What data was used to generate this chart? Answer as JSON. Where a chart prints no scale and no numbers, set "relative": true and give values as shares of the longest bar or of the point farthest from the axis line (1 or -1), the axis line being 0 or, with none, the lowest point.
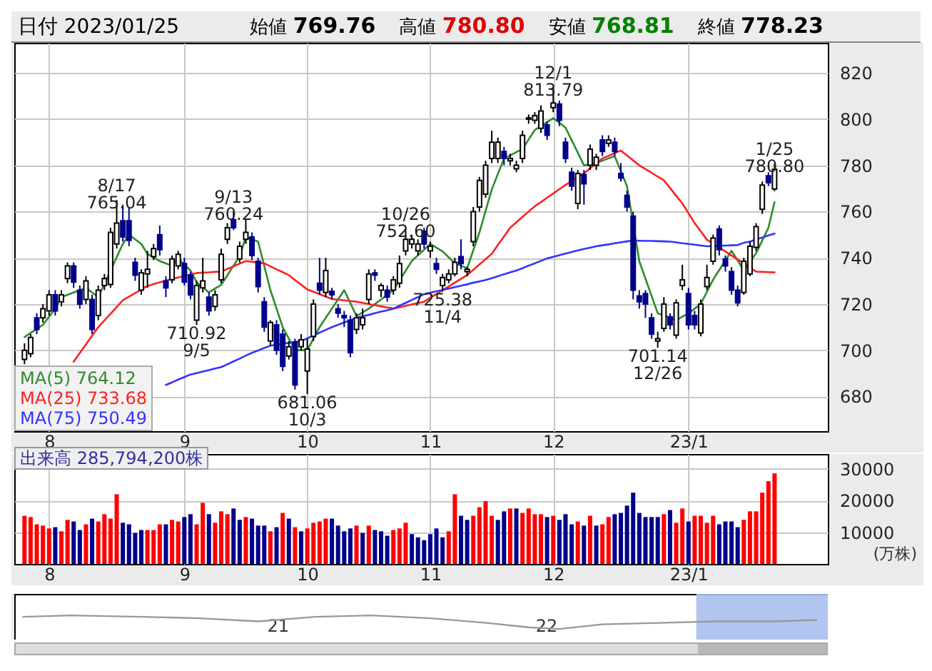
{
  "chart_data": [
    {
      "type": "candlestick",
      "title": "日付 2023/01/25",
      "annotations": [
        "始値 769.76",
        "高値 780.80",
        "安値 768.81",
        "終値 778.23",
        {
          "text": "8/17 765.04",
          "y": 765.04
        },
        {
          "text": "710.92 9/5",
          "y": 710.92
        },
        {
          "text": "9/13 760.24",
          "y": 760.24
        },
        {
          "text": "681.06 10/3",
          "y": 681.06
        },
        {
          "text": "10/26 752.60",
          "y": 752.6
        },
        {
          "text": "725.38 11/4",
          "y": 725.38
        },
        {
          "text": "12/1 813.79",
          "y": 813.79
        },
        {
          "text": "701.14 12/26",
          "y": 701.14
        },
        {
          "text": "1/25 780.80",
          "y": 780.8
        }
      ],
      "categories": [
        null,
        null,
        null,
        null,
        "8",
        null,
        null,
        null,
        null,
        null,
        null,
        null,
        null,
        null,
        null,
        null,
        null,
        null,
        null,
        null,
        null,
        null,
        null,
        null,
        null,
        null,
        "9",
        null,
        null,
        null,
        null,
        null,
        null,
        null,
        null,
        null,
        null,
        null,
        null,
        null,
        null,
        null,
        null,
        null,
        null,
        null,
        "10",
        null,
        null,
        null,
        null,
        null,
        null,
        null,
        null,
        null,
        null,
        null,
        null,
        null,
        null,
        null,
        null,
        null,
        null,
        null,
        "11",
        null,
        null,
        null,
        null,
        null,
        null,
        null,
        null,
        null,
        null,
        null,
        null,
        null,
        null,
        null,
        null,
        null,
        null,
        null,
        "12",
        null,
        null,
        null,
        null,
        null,
        null,
        null,
        null,
        null,
        null,
        null,
        null,
        null,
        null,
        null,
        null,
        null,
        null,
        null,
        null,
        null,
        "23/1",
        null,
        null,
        null,
        null,
        null,
        null,
        null,
        null,
        null,
        null,
        null,
        null,
        null,
        null,
        null,
        null,
        null,
        null,
        null,
        null,
        null
      ],
      "ylim": [
        665,
        833
      ],
      "yticks": [
        680,
        700,
        720,
        740,
        760,
        780,
        800,
        820
      ],
      "grid": true,
      "legend": "bottom left",
      "ohlc": [
        [
          696,
          703,
          694,
          700
        ],
        [
          698.5,
          707,
          697,
          705.5
        ],
        [
          714,
          716,
          707,
          709
        ],
        [
          714,
          720,
          712,
          718
        ],
        [
          717,
          726,
          715,
          724
        ],
        [
          724,
          726,
          715,
          717
        ],
        [
          721,
          726,
          719,
          724
        ],
        [
          731,
          738,
          729,
          736.5
        ],
        [
          736.5,
          738,
          727,
          729.5
        ],
        [
          726,
          728,
          718,
          720
        ],
        [
          722,
          732,
          720,
          730
        ],
        [
          722,
          724,
          707,
          709
        ],
        [
          715,
          728,
          713,
          726
        ],
        [
          728,
          733,
          726,
          731
        ],
        [
          728.5,
          753,
          727,
          751
        ],
        [
          746,
          765.04,
          744,
          755
        ],
        [
          756,
          763,
          747,
          749
        ],
        [
          756,
          762,
          745,
          747.5
        ],
        [
          738,
          740,
          730,
          732.5
        ],
        [
          726,
          735,
          724,
          733.5
        ],
        [
          733,
          743,
          727,
          735
        ],
        [
          740.5,
          746,
          739,
          744
        ],
        [
          750,
          754,
          741,
          743.5
        ],
        [
          730,
          732,
          723,
          727
        ],
        [
          730.5,
          741,
          729,
          739.5
        ],
        [
          736.5,
          743,
          735,
          741.5
        ],
        [
          737.5,
          740,
          728,
          729.5
        ],
        [
          732.5,
          734,
          722,
          724
        ],
        [
          713,
          730,
          710.92,
          728
        ],
        [
          727,
          740,
          725,
          730
        ],
        [
          723,
          725,
          715,
          717
        ],
        [
          719,
          726,
          717,
          724
        ],
        [
          730.5,
          744,
          729,
          741.5
        ],
        [
          748,
          755,
          746,
          753
        ],
        [
          756.5,
          760.24,
          752,
          753
        ],
        [
          739.5,
          747,
          738,
          745
        ],
        [
          748,
          757,
          746,
          751
        ],
        [
          749,
          751,
          739,
          741
        ],
        [
          738.5,
          740,
          725,
          727.5
        ],
        [
          721,
          723,
          708,
          710
        ],
        [
          704,
          713,
          702,
          712
        ],
        [
          711,
          713,
          698,
          700
        ],
        [
          707,
          709,
          691,
          693
        ],
        [
          697.5,
          704,
          696,
          701.5
        ],
        [
          703.5,
          705,
          683,
          685
        ],
        [
          701.5,
          707,
          700,
          704.5
        ],
        [
          691,
          705,
          681.06,
          700.5
        ],
        [
          706,
          722,
          704,
          720
        ],
        [
          729,
          740,
          724,
          726
        ],
        [
          725,
          740,
          723,
          734.5
        ],
        [
          725.5,
          727,
          722,
          724
        ],
        [
          718,
          720,
          714,
          716
        ],
        [
          715,
          717,
          710,
          714
        ],
        [
          713,
          715,
          697,
          699
        ],
        [
          709,
          716,
          707,
          714
        ],
        [
          711,
          718,
          709,
          714
        ],
        [
          722,
          735,
          720,
          733
        ],
        [
          733.5,
          735,
          730,
          732.5
        ],
        [
          726,
          729,
          723,
          728
        ],
        [
          726,
          728,
          721,
          723
        ],
        [
          726,
          732,
          724,
          730.5
        ],
        [
          729,
          741,
          727,
          737.5
        ],
        [
          743,
          752.6,
          741,
          748
        ],
        [
          746,
          750,
          744,
          748
        ],
        [
          743,
          748,
          741,
          746
        ],
        [
          751.5,
          753,
          744,
          746
        ],
        [
          743,
          747,
          740,
          745
        ],
        [
          737.5,
          740,
          733,
          735
        ],
        [
          728,
          733,
          725.38,
          731.5
        ],
        [
          730.5,
          735,
          729,
          733
        ],
        [
          733,
          740,
          732,
          738
        ],
        [
          740.5,
          748,
          735,
          737.5
        ],
        [
          734,
          736,
          732,
          735
        ],
        [
          747,
          762,
          745,
          760
        ],
        [
          762,
          775,
          760,
          773.5
        ],
        [
          767.5,
          782,
          766,
          780
        ],
        [
          783,
          795,
          781,
          790
        ],
        [
          783,
          792,
          781,
          790
        ],
        [
          786,
          788,
          780,
          783
        ],
        [
          782,
          785,
          780,
          783
        ],
        [
          778.5,
          782,
          777,
          780
        ],
        [
          783,
          795,
          781,
          793
        ],
        [
          800,
          802,
          798,
          800.5
        ],
        [
          799.5,
          803,
          798,
          801.5
        ],
        [
          796,
          806,
          794,
          803.5
        ],
        [
          797.5,
          799,
          791,
          793
        ],
        [
          805,
          813.79,
          803,
          807
        ],
        [
          806.5,
          808,
          797,
          799.5
        ],
        [
          790,
          792,
          781,
          783
        ],
        [
          777,
          779,
          769,
          771
        ],
        [
          763.5,
          778,
          761,
          776.5
        ],
        [
          776,
          778,
          763,
          772
        ],
        [
          780,
          789,
          778,
          787
        ],
        [
          780,
          785,
          778,
          783.5
        ],
        [
          791,
          793,
          784,
          786
        ],
        [
          789.5,
          793,
          788,
          791
        ],
        [
          790,
          792,
          784,
          786
        ],
        [
          776.5,
          781,
          773,
          774.5
        ],
        [
          767,
          769,
          760,
          762
        ],
        [
          758,
          760,
          722,
          726
        ],
        [
          723.5,
          726,
          718,
          721
        ],
        [
          724.5,
          726,
          714,
          720
        ],
        [
          714,
          716,
          705,
          707
        ],
        [
          704,
          708,
          701.14,
          705
        ],
        [
          709.5,
          723,
          708,
          720
        ],
        [
          714.5,
          716,
          709,
          711
        ],
        [
          706.5,
          722,
          705,
          720.5
        ],
        [
          728,
          737,
          726,
          730.5
        ],
        [
          724.5,
          727,
          709,
          711
        ],
        [
          715,
          717,
          709,
          711
        ],
        [
          707.5,
          722,
          706,
          720
        ],
        [
          727.5,
          737,
          726,
          731.5
        ],
        [
          738.5,
          750,
          737,
          748.5
        ],
        [
          752.5,
          754,
          741,
          743.5
        ],
        [
          739.5,
          741,
          734,
          736.5
        ],
        [
          734,
          736,
          724,
          726
        ],
        [
          726,
          728,
          719,
          720.5
        ],
        [
          725,
          740,
          724,
          738.5
        ],
        [
          733,
          747,
          732,
          745
        ],
        [
          744.5,
          755,
          743,
          753.5
        ],
        [
          761,
          773,
          759,
          771.5
        ],
        [
          775.5,
          777,
          771,
          772.5
        ],
        [
          769.76,
          780.8,
          768.81,
          778.23
        ],
        null,
        null,
        null,
        null,
        null,
        null,
        null
      ],
      "series": [
        {
          "type": "line",
          "name": "MA(5) 764.12",
          "color": "#2e8b2e",
          "values": [
            705.7,
            707.5,
            709.2,
            711,
            714.5,
            718,
            723,
            724,
            725,
            726,
            727,
            725,
            723,
            728.8,
            734.5,
            740.3,
            746,
            750,
            748,
            746,
            741.7,
            740.2,
            738.6,
            737.6,
            736.6,
            739.7,
            737.1,
            734.5,
            729.4,
            727.2,
            725,
            726.7,
            728.3,
            732.4,
            736.6,
            740.7,
            749,
            748,
            747,
            736.5,
            726,
            718,
            710,
            705,
            700,
            700,
            700,
            705,
            710,
            714,
            718,
            722,
            726,
            720.4,
            714.8,
            716.4,
            718,
            720,
            722,
            724,
            726,
            730.2,
            734.4,
            738.6,
            741.1,
            743.5,
            746,
            744.4,
            742.8,
            740.2,
            737.6,
            736.6,
            735.5,
            743.3,
            751,
            760.3,
            769.5,
            776.3,
            783,
            784.3,
            785.7,
            787,
            791.2,
            795.3,
            797,
            798.7,
            800.4,
            798.4,
            796.3,
            790.9,
            785.5,
            780,
            780.5,
            781,
            782,
            783,
            784,
            777.5,
            771,
            null,
            738.5,
            731,
            723.5,
            716,
            715,
            714,
            713,
            714.5,
            716,
            718,
            720,
            725.3,
            730.5,
            734.7,
            738.8,
            743,
            738.8,
            734.5,
            738.3,
            742,
            747.5,
            753,
            764.12,
            null,
            null,
            null,
            null,
            null,
            null,
            null
          ]
        },
        {
          "type": "line",
          "name": "MA(25) 733.68",
          "color": "#ff2020",
          "values": [
            null,
            null,
            null,
            null,
            null,
            null,
            null,
            null,
            695,
            698.8,
            702.5,
            706.3,
            710,
            712.9,
            715.8,
            718.7,
            721.6,
            723.2,
            724.7,
            726.3,
            727.8,
            728.6,
            729.4,
            730.1,
            730.9,
            731.5,
            732.2,
            732.8,
            733.4,
            733.6,
            733.7,
            733.9,
            734,
            735.2,
            736.3,
            737.5,
            738.6,
            738.3,
            737.9,
            737.6,
            736.3,
            735,
            733.8,
            732.5,
            730.4,
            728.4,
            726.3,
            725.3,
            724.3,
            723.2,
            722.2,
            721.9,
            721.6,
            721.3,
            721,
            720.5,
            720,
            719.5,
            719,
            718.5,
            718,
            718.6,
            719.2,
            719.8,
            720.4,
            721,
            722.7,
            724.3,
            726,
            727.6,
            729.3,
            730.9,
            732.5,
            734.8,
            737.1,
            739.4,
            741.7,
            745.5,
            749.2,
            753,
            755.3,
            757.7,
            760,
            762.3,
            764.1,
            766,
            767.8,
            769.7,
            771.5,
            773.2,
            774.8,
            776.5,
            778.7,
            780.8,
            783,
            784.1,
            785.3,
            786.4,
            784.3,
            782.1,
            780,
            778.4,
            776.8,
            775.1,
            773.5,
            770.2,
            766.8,
            763.5,
            759.3,
            755,
            751.4,
            747.8,
            746.1,
            744.4,
            742.7,
            741,
            739.3,
            737.6,
            735.8,
            734,
            733.9,
            733.8,
            733.68,
            null,
            null,
            null,
            null,
            null,
            null,
            null
          ]
        },
        {
          "type": "line",
          "name": "MA(75) 750.49",
          "color": "#3333ff",
          "values": [
            null,
            null,
            null,
            null,
            null,
            null,
            null,
            null,
            null,
            null,
            null,
            null,
            null,
            null,
            null,
            null,
            null,
            null,
            null,
            null,
            null,
            null,
            null,
            685,
            686.1,
            687.3,
            688.4,
            689.5,
            690.1,
            690.8,
            691.4,
            692.1,
            692.7,
            693.9,
            695.2,
            696.4,
            697.7,
            698.9,
            699.9,
            701,
            702,
            702.4,
            702.8,
            703.2,
            703.6,
            704,
            705.2,
            706.4,
            707.6,
            708.8,
            710,
            711,
            712,
            713,
            714,
            714.7,
            715.3,
            716,
            716.7,
            717.3,
            718,
            719.3,
            720.5,
            721.8,
            723,
            724.3,
            724.9,
            725.5,
            726.1,
            726.7,
            727.3,
            727.9,
            728.5,
            729.2,
            729.8,
            730.4,
            731.2,
            732,
            732.9,
            733.7,
            734.5,
            735.5,
            736.6,
            737.6,
            738.7,
            739.7,
            740.4,
            741.1,
            741.8,
            742.5,
            743.2,
            743.8,
            744.4,
            745,
            745.4,
            745.8,
            746.3,
            746.7,
            747.1,
            747.5,
            747.4,
            747.3,
            747.3,
            747.2,
            747.1,
            747,
            746.7,
            746.3,
            746,
            745.7,
            745.3,
            745,
            745.1,
            745.2,
            745.3,
            745.4,
            745.5,
            746.5,
            747,
            748,
            748.8,
            749.7,
            750.49,
            null,
            null,
            null,
            null,
            null,
            null,
            null
          ]
        }
      ]
    },
    {
      "type": "bar",
      "title": "出来高 285,794,200株",
      "ylabel": "(万株)",
      "categories": [
        null,
        null,
        null,
        null,
        "8",
        null,
        null,
        null,
        null,
        null,
        null,
        null,
        null,
        null,
        null,
        null,
        null,
        null,
        null,
        null,
        null,
        null,
        null,
        null,
        null,
        null,
        "9",
        null,
        null,
        null,
        null,
        null,
        null,
        null,
        null,
        null,
        null,
        null,
        null,
        null,
        null,
        null,
        null,
        null,
        null,
        null,
        "10",
        null,
        null,
        null,
        null,
        null,
        null,
        null,
        null,
        null,
        null,
        null,
        null,
        null,
        null,
        null,
        null,
        null,
        null,
        null,
        "11",
        null,
        null,
        null,
        null,
        null,
        null,
        null,
        null,
        null,
        null,
        null,
        null,
        null,
        null,
        null,
        null,
        null,
        null,
        null,
        "12",
        null,
        null,
        null,
        null,
        null,
        null,
        null,
        null,
        null,
        null,
        null,
        null,
        null,
        null,
        null,
        null,
        null,
        null,
        null,
        null,
        null,
        "23/1",
        null,
        null,
        null,
        null,
        null,
        null,
        null,
        null,
        null,
        null,
        null,
        null,
        null,
        null,
        null,
        null,
        null,
        null,
        null,
        null,
        null
      ],
      "values": [
        15200,
        14800,
        12500,
        12100,
        11200,
        11600,
        10300,
        13900,
        13400,
        10700,
        12500,
        14300,
        13400,
        15700,
        14300,
        22000,
        13000,
        12500,
        9800,
        10700,
        10700,
        10700,
        12500,
        12500,
        13900,
        13400,
        14800,
        15700,
        12500,
        19300,
        15700,
        13000,
        16600,
        15700,
        17500,
        13900,
        14800,
        14300,
        12100,
        12100,
        10300,
        11600,
        16100,
        14300,
        11600,
        10300,
        11200,
        13000,
        13400,
        14300,
        14300,
        12100,
        10300,
        11200,
        12100,
        9800,
        12100,
        10700,
        10300,
        8900,
        10700,
        11200,
        13000,
        9400,
        8400,
        7500,
        9400,
        11200,
        8400,
        10300,
        22000,
        15200,
        13900,
        15200,
        17900,
        19800,
        15200,
        13900,
        16600,
        17500,
        17500,
        16100,
        17500,
        15700,
        15700,
        14800,
        15200,
        13900,
        15700,
        12500,
        13400,
        12100,
        15200,
        12100,
        12500,
        14800,
        15700,
        16100,
        18400,
        22500,
        16100,
        14800,
        14800,
        14800,
        15700,
        17000,
        13000,
        17500,
        13400,
        15200,
        15200,
        13000,
        15200,
        12500,
        13400,
        13400,
        11600,
        13900,
        16600,
        16600,
        22500,
        26100,
        28579.42,
        null,
        null,
        null,
        null,
        null,
        null,
        null
      ],
      "colors": [
        "#ff0000",
        "#ff0000",
        "#ff0000",
        "#ff0000",
        "#ff0000",
        "#00008b",
        "#ff0000",
        "#ff0000",
        "#00008b",
        "#00008b",
        "#ff0000",
        "#00008b",
        "#ff0000",
        "#ff0000",
        "#ff0000",
        "#ff0000",
        "#00008b",
        "#00008b",
        "#00008b",
        "#00008b",
        "#ff0000",
        "#ff0000",
        "#ff0000",
        "#00008b",
        "#ff0000",
        "#ff0000",
        "#00008b",
        "#00008b",
        "#ff0000",
        "#ff0000",
        "#00008b",
        "#ff0000",
        "#ff0000",
        "#ff0000",
        "#00008b",
        "#00008b",
        "#ff0000",
        "#00008b",
        "#00008b",
        "#00008b",
        "#ff0000",
        "#00008b",
        "#ff0000",
        "#00008b",
        "#ff0000",
        "#00008b",
        "#ff0000",
        "#ff0000",
        "#ff0000",
        "#ff0000",
        "#00008b",
        "#00008b",
        "#00008b",
        "#00008b",
        "#ff0000",
        "#00008b",
        "#ff0000",
        "#00008b",
        "#00008b",
        "#00008b",
        "#ff0000",
        "#ff0000",
        "#ff0000",
        "#00008b",
        "#00008b",
        "#00008b",
        "#00008b",
        "#00008b",
        "#00008b",
        "#ff0000",
        "#ff0000",
        "#00008b",
        "#00008b",
        "#ff0000",
        "#ff0000",
        "#ff0000",
        "#ff0000",
        "#00008b",
        "#00008b",
        "#ff0000",
        "#00008b",
        "#ff0000",
        "#ff0000",
        "#ff0000",
        "#ff0000",
        "#00008b",
        "#ff0000",
        "#00008b",
        "#00008b",
        "#00008b",
        "#ff0000",
        "#00008b",
        "#ff0000",
        "#00008b",
        "#ff0000",
        "#ff0000",
        "#00008b",
        "#00008b",
        "#00008b",
        "#00008b",
        "#00008b",
        "#00008b",
        "#00008b",
        "#00008b",
        "#ff0000",
        "#00008b",
        "#ff0000",
        "#ff0000",
        "#00008b",
        "#ff0000",
        "#ff0000",
        "#ff0000",
        "#ff0000",
        "#00008b",
        "#00008b",
        "#00008b",
        "#00008b",
        "#ff0000",
        "#ff0000",
        "#ff0000",
        "#ff0000",
        "#ff0000",
        "#ff0000",
        null,
        null,
        null,
        null,
        null,
        null,
        null
      ],
      "ylim": [
        0,
        34700
      ],
      "yticks": [
        10000,
        20000,
        30000
      ],
      "grid": true
    },
    {
      "type": "line",
      "relative": true,
      "x": [
        2020.05,
        2020.23,
        2020.5,
        2020.71,
        2020.93,
        2021.14,
        2021.35,
        2021.57,
        2021.78,
        2021.94,
        2022.05,
        2022.21,
        2022.42,
        2022.63,
        2022.85,
        2023.01
      ],
      "series": [
        {
          "color": "#999999",
          "values": [
            0.94,
            1,
            0.94,
            0.88,
            0.75,
            0.94,
            1,
            0.88,
            0.69,
            0.5,
            0.44,
            0.63,
            0.69,
            0.75,
            0.75,
            0.81
          ]
        }
      ],
      "xlim": [
        2020.02,
        2023.05
      ],
      "xticks": [
        {
          "value": 2021,
          "label": "21"
        },
        {
          "value": 2022,
          "label": "22"
        }
      ],
      "bands": [
        {
          "axis": "x",
          "from": 2022.56,
          "to": 2023.05,
          "color": "#aabfee"
        }
      ]
    }
  ]
}
